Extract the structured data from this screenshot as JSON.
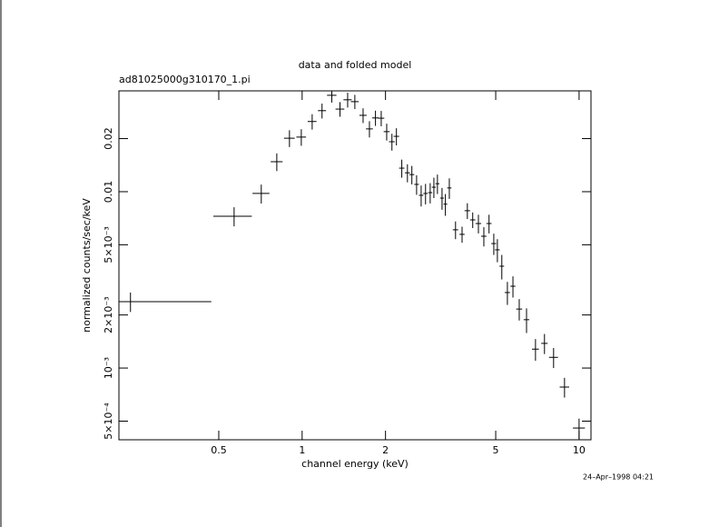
{
  "chart_data": {
    "type": "scatter",
    "title": "data and folded model",
    "subtitle": "ad81025000g310170_1.pi",
    "x_label": "channel energy (keV)",
    "y_label": "normalized counts/sec/keV",
    "annotation": "24–Apr–1998 04:21",
    "xscale": "log",
    "yscale": "log",
    "color": "#000000",
    "xlim": [
      0.218,
      11.04
    ],
    "ylim": [
      0.000392,
      0.0373
    ],
    "xticks": [
      0.5,
      1,
      2,
      5,
      10
    ],
    "yticks": [
      {
        "value": 0.0005,
        "label": "5×10⁻⁴"
      },
      {
        "value": 0.001,
        "label": "10⁻³"
      },
      {
        "value": 0.002,
        "label": "2×10⁻³"
      },
      {
        "value": 0.005,
        "label": "5×10⁻³"
      },
      0.01,
      0.02
    ],
    "x": [
      0.24,
      0.568,
      0.712,
      0.81,
      0.9,
      0.993,
      1.087,
      1.18,
      1.28,
      1.37,
      1.46,
      1.55,
      1.66,
      1.75,
      1.84,
      1.93,
      2.02,
      2.11,
      2.19,
      2.29,
      2.4,
      2.49,
      2.59,
      2.69,
      2.79,
      2.9,
      2.99,
      3.08,
      3.2,
      3.29,
      3.4,
      3.58,
      3.78,
      3.95,
      4.13,
      4.33,
      4.53,
      4.73,
      4.92,
      5.07,
      5.26,
      5.51,
      5.77,
      6.08,
      6.46,
      6.96,
      7.5,
      8.09,
      8.86,
      10.0
    ],
    "xerr": [
      0.23,
      0.09,
      0.05,
      0.04,
      0.04,
      0.04,
      0.04,
      0.04,
      0.05,
      0.05,
      0.05,
      0.05,
      0.05,
      0.05,
      0.05,
      0.05,
      0.05,
      0.05,
      0.05,
      0.05,
      0.05,
      0.05,
      0.05,
      0.05,
      0.05,
      0.05,
      0.05,
      0.05,
      0.05,
      0.05,
      0.06,
      0.08,
      0.08,
      0.09,
      0.09,
      0.1,
      0.1,
      0.1,
      0.1,
      0.1,
      0.1,
      0.12,
      0.12,
      0.15,
      0.15,
      0.2,
      0.2,
      0.3,
      0.35,
      0.5
    ],
    "values": [
      0.00238,
      0.00726,
      0.00977,
      0.01479,
      0.0201,
      0.0204,
      0.025,
      0.0288,
      0.0352,
      0.0294,
      0.0332,
      0.0324,
      0.0271,
      0.0227,
      0.0262,
      0.0261,
      0.0219,
      0.0192,
      0.0206,
      0.0136,
      0.0128,
      0.0125,
      0.011,
      0.00954,
      0.00977,
      0.00988,
      0.0106,
      0.0111,
      0.0092,
      0.0085,
      0.0105,
      0.00608,
      0.00573,
      0.0078,
      0.00692,
      0.0066,
      0.00559,
      0.0066,
      0.00508,
      0.00468,
      0.00378,
      0.00268,
      0.00291,
      0.00216,
      0.00188,
      0.00128,
      0.00138,
      0.00115,
      0.00078,
      0.000457
    ],
    "yerr": [
      0.0003,
      0.0009,
      0.0012,
      0.0017,
      0.0022,
      0.0022,
      0.0025,
      0.0028,
      0.0032,
      0.0028,
      0.0032,
      0.003,
      0.0026,
      0.0024,
      0.0026,
      0.0026,
      0.0024,
      0.0021,
      0.0023,
      0.0016,
      0.0015,
      0.0015,
      0.0014,
      0.0013,
      0.0013,
      0.0013,
      0.0014,
      0.0014,
      0.0013,
      0.0012,
      0.0014,
      0.0007,
      0.0006,
      0.0008,
      0.0007,
      0.0008,
      0.0007,
      0.0008,
      0.0007,
      0.0007,
      0.0006,
      0.0004,
      0.0004,
      0.0003,
      0.0003,
      0.00018,
      0.00018,
      0.00015,
      0.0001,
      6e-05
    ]
  }
}
